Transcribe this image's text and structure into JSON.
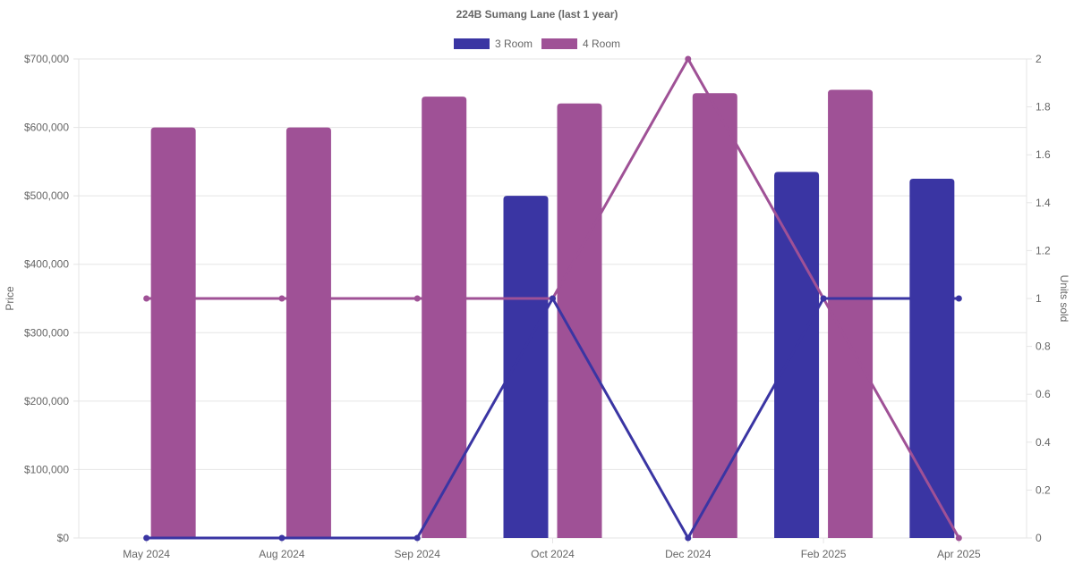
{
  "chart_data": {
    "type": "bar",
    "title": "224B Sumang Lane (last 1 year)",
    "categories": [
      "May 2024",
      "Aug 2024",
      "Sep 2024",
      "Oct 2024",
      "Dec 2024",
      "Feb 2025",
      "Apr 2025"
    ],
    "ylabel": "Price",
    "y2label": "Units sold",
    "ylim": [
      0,
      700000
    ],
    "y2lim": [
      0,
      2
    ],
    "y_ticks": [
      "$0",
      "$100,000",
      "$200,000",
      "$300,000",
      "$400,000",
      "$500,000",
      "$600,000",
      "$700,000"
    ],
    "y2_ticks": [
      "0",
      "0.2",
      "0.4",
      "0.6",
      "0.8",
      "1",
      "1.2",
      "1.4",
      "1.6",
      "1.8",
      "2"
    ],
    "grid": true,
    "legend_position": "top",
    "series": [
      {
        "name": "3 Room",
        "color": "#3a35a3",
        "price": [
          null,
          null,
          null,
          500000,
          null,
          535000,
          525000
        ],
        "units_sold": [
          0,
          0,
          0,
          1,
          0,
          1,
          1
        ]
      },
      {
        "name": "4 Room",
        "color": "#9f5196",
        "price": [
          600000,
          600000,
          645000,
          635000,
          650000,
          655000,
          null
        ],
        "units_sold": [
          1,
          1,
          1,
          1,
          2,
          1,
          0
        ]
      }
    ]
  }
}
